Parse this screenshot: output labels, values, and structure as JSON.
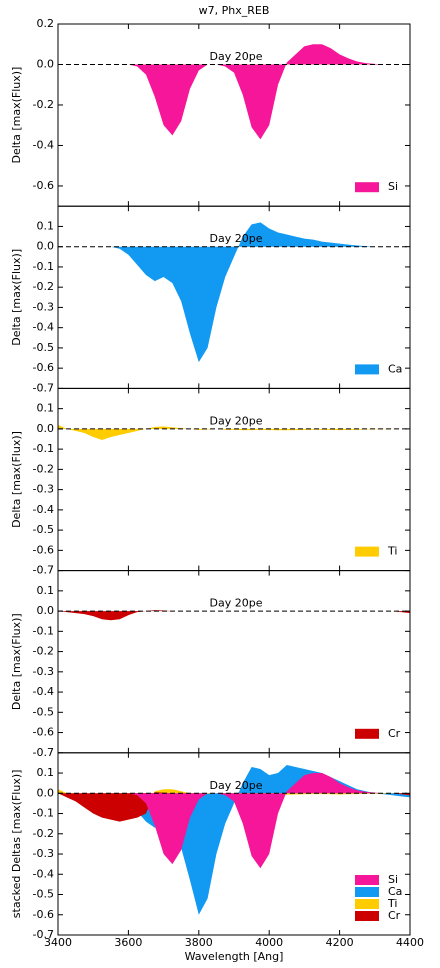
{
  "title": "w7, Phx_REB",
  "chart_data": [
    {
      "type": "area",
      "annotation": "Day 20pe",
      "ylabel": "Delta [max(Flux)]",
      "ylim": [
        -0.7,
        0.2
      ],
      "yticks": [
        0.2,
        {
          "value": 0,
          "label": "0.0"
        },
        -0.2,
        -0.4,
        -0.6
      ],
      "x": [
        3400,
        3425,
        3450,
        3475,
        3500,
        3525,
        3550,
        3575,
        3600,
        3625,
        3650,
        3675,
        3700,
        3725,
        3750,
        3775,
        3800,
        3825,
        3850,
        3875,
        3900,
        3925,
        3950,
        3975,
        4000,
        4025,
        4050,
        4075,
        4100,
        4125,
        4150,
        4175,
        4200,
        4225,
        4250,
        4275,
        4300,
        4325,
        4350,
        4375,
        4400
      ],
      "series": [
        {
          "name": "Si",
          "color": "#f5169a",
          "values": [
            0,
            0,
            0,
            0,
            0,
            0,
            0,
            0,
            0,
            -0.01,
            -0.05,
            -0.16,
            -0.3,
            -0.35,
            -0.28,
            -0.12,
            -0.03,
            0,
            0,
            -0.01,
            -0.04,
            -0.15,
            -0.31,
            -0.37,
            -0.3,
            -0.1,
            0.01,
            0.05,
            0.09,
            0.1,
            0.1,
            0.08,
            0.05,
            0.03,
            0.015,
            0.007,
            0.003,
            0,
            0,
            0,
            0
          ]
        }
      ]
    },
    {
      "type": "area",
      "annotation": "Day 20pe",
      "ylabel": "Delta [max(Flux)]",
      "ylim": [
        -0.7,
        0.2
      ],
      "yticks": [
        0.1,
        {
          "value": 0,
          "label": "0.0"
        },
        -0.1,
        -0.2,
        -0.3,
        -0.4,
        -0.5,
        -0.6,
        -0.7
      ],
      "x": [
        3400,
        3425,
        3450,
        3475,
        3500,
        3525,
        3550,
        3575,
        3600,
        3625,
        3650,
        3675,
        3700,
        3725,
        3750,
        3775,
        3800,
        3825,
        3850,
        3875,
        3900,
        3925,
        3950,
        3975,
        4000,
        4025,
        4050,
        4075,
        4100,
        4125,
        4150,
        4175,
        4200,
        4225,
        4250,
        4275,
        4300,
        4325,
        4350,
        4375,
        4400
      ],
      "series": [
        {
          "name": "Ca",
          "color": "#1299f2",
          "values": [
            0,
            0,
            0,
            0,
            0,
            0,
            0,
            -0.01,
            -0.04,
            -0.09,
            -0.14,
            -0.17,
            -0.15,
            -0.18,
            -0.27,
            -0.43,
            -0.57,
            -0.5,
            -0.3,
            -0.15,
            -0.05,
            0.05,
            0.11,
            0.12,
            0.09,
            0.07,
            0.06,
            0.05,
            0.04,
            0.035,
            0.025,
            0.02,
            0.015,
            0.01,
            0.006,
            0.003,
            0,
            0,
            0,
            0,
            0
          ]
        }
      ]
    },
    {
      "type": "area",
      "annotation": "Day 20pe",
      "ylabel": "Delta [max(Flux)]",
      "ylim": [
        -0.7,
        0.2
      ],
      "yticks": [
        0.1,
        {
          "value": 0,
          "label": "0.0"
        },
        -0.1,
        -0.2,
        -0.3,
        -0.4,
        -0.5,
        -0.6,
        -0.7
      ],
      "x": [
        3400,
        3425,
        3450,
        3475,
        3500,
        3525,
        3550,
        3575,
        3600,
        3625,
        3650,
        3675,
        3700,
        3725,
        3750,
        3775,
        3800,
        3825,
        3850,
        3875,
        3900,
        3925,
        3950,
        3975,
        4000,
        4025,
        4050,
        4075,
        4100,
        4125,
        4150,
        4175,
        4200,
        4225,
        4250,
        4275,
        4300,
        4325,
        4350,
        4375,
        4400
      ],
      "series": [
        {
          "name": "Ti",
          "color": "#ffcc00",
          "values": [
            0.02,
            0,
            -0.01,
            -0.02,
            -0.04,
            -0.055,
            -0.04,
            -0.03,
            -0.02,
            -0.01,
            0,
            0.01,
            0.012,
            0.008,
            0.004,
            0,
            -0.005,
            -0.003,
            0,
            -0.004,
            -0.005,
            -0.006,
            -0.006,
            -0.005,
            -0.006,
            -0.007,
            -0.007,
            -0.006,
            -0.005,
            -0.004,
            -0.004,
            -0.005,
            -0.006,
            -0.005,
            -0.004,
            -0.003,
            -0.002,
            -0.002,
            -0.001,
            0,
            0
          ]
        }
      ]
    },
    {
      "type": "area",
      "annotation": "Day 20pe",
      "ylabel": "Delta [max(Flux)]",
      "ylim": [
        -0.7,
        0.2
      ],
      "yticks": [
        0.1,
        {
          "value": 0,
          "label": "0.0"
        },
        -0.1,
        -0.2,
        -0.3,
        -0.4,
        -0.5,
        -0.6,
        -0.7
      ],
      "x": [
        3400,
        3425,
        3450,
        3475,
        3500,
        3525,
        3550,
        3575,
        3600,
        3625,
        3650,
        3675,
        3700,
        3725,
        3750,
        3775,
        3800,
        3825,
        3850,
        3875,
        3900,
        3925,
        3950,
        3975,
        4000,
        4025,
        4050,
        4075,
        4100,
        4125,
        4150,
        4175,
        4200,
        4225,
        4250,
        4275,
        4300,
        4325,
        4350,
        4375,
        4400
      ],
      "series": [
        {
          "name": "Cr",
          "color": "#cc0000",
          "values": [
            0,
            -0.005,
            -0.01,
            -0.015,
            -0.025,
            -0.04,
            -0.045,
            -0.04,
            -0.02,
            -0.005,
            0,
            0.005,
            0.003,
            0,
            0,
            0,
            0,
            0,
            0,
            0,
            0,
            0,
            0,
            0,
            0,
            0,
            0,
            0,
            0,
            0,
            0,
            0,
            0,
            0,
            0,
            0,
            0,
            0,
            0,
            -0.005,
            -0.01
          ]
        }
      ]
    },
    {
      "type": "area",
      "annotation": "Day 20pe",
      "ylabel": "stacked Deltas [max(Flux)]",
      "xlabel": "Wavelength [Ang]",
      "ylim": [
        -0.7,
        0.2
      ],
      "xlim": [
        3400,
        4400
      ],
      "xticks": [
        3400,
        3600,
        3800,
        4000,
        4200,
        4400
      ],
      "yticks": [
        0.1,
        {
          "value": 0,
          "label": "0.0"
        },
        -0.1,
        -0.2,
        -0.3,
        -0.4,
        -0.5,
        -0.6,
        -0.7
      ],
      "x": [
        3400,
        3425,
        3450,
        3475,
        3500,
        3525,
        3550,
        3575,
        3600,
        3625,
        3650,
        3675,
        3700,
        3725,
        3750,
        3775,
        3800,
        3825,
        3850,
        3875,
        3900,
        3925,
        3950,
        3975,
        4000,
        4025,
        4050,
        4075,
        4100,
        4125,
        4150,
        4175,
        4200,
        4225,
        4250,
        4275,
        4300,
        4325,
        4350,
        4375,
        4400
      ],
      "series": [
        {
          "name": "Si",
          "color": "#f5169a",
          "values": [
            0,
            0,
            0,
            0,
            0,
            0,
            0,
            0,
            0,
            -0.01,
            -0.05,
            -0.16,
            -0.3,
            -0.35,
            -0.28,
            -0.12,
            -0.03,
            0,
            0,
            -0.01,
            -0.04,
            -0.15,
            -0.31,
            -0.37,
            -0.3,
            -0.1,
            0.01,
            0.05,
            0.09,
            0.1,
            0.1,
            0.08,
            0.05,
            0.03,
            0.015,
            0.007,
            0.003,
            0,
            0,
            0,
            0
          ]
        },
        {
          "name": "Ca",
          "color": "#1299f2",
          "values": [
            0,
            0,
            0,
            0,
            0,
            0,
            0,
            -0.01,
            -0.04,
            -0.09,
            -0.14,
            -0.17,
            -0.15,
            -0.18,
            -0.27,
            -0.43,
            -0.6,
            -0.52,
            -0.3,
            -0.15,
            -0.05,
            0.05,
            0.13,
            0.12,
            0.09,
            0.1,
            0.14,
            0.13,
            0.12,
            0.11,
            0.1,
            0.08,
            0.06,
            0.04,
            0.02,
            0.01,
            0,
            -0.005,
            -0.01,
            -0.015,
            -0.02
          ]
        },
        {
          "name": "Ti",
          "color": "#ffcc00",
          "values": [
            0.02,
            0,
            -0.01,
            -0.03,
            -0.06,
            -0.08,
            -0.08,
            -0.09,
            -0.09,
            -0.1,
            -0.05,
            0.01,
            0.02,
            0.02,
            0.01,
            0,
            -0.005,
            -0.003,
            0,
            -0.004,
            -0.005,
            -0.006,
            -0.006,
            -0.005,
            -0.006,
            -0.007,
            -0.007,
            -0.006,
            -0.005,
            -0.004,
            -0.004,
            -0.005,
            -0.006,
            -0.005,
            -0.004,
            -0.003,
            -0.002,
            -0.002,
            -0.001,
            0,
            0
          ]
        },
        {
          "name": "Cr",
          "color": "#cc0000",
          "values": [
            0,
            -0.02,
            -0.04,
            -0.07,
            -0.1,
            -0.12,
            -0.13,
            -0.14,
            -0.13,
            -0.12,
            -0.1,
            0.005,
            0.003,
            0,
            0,
            0,
            0,
            0,
            0,
            0,
            0,
            0,
            0,
            0,
            0,
            0,
            0,
            0,
            0,
            0,
            0,
            0,
            0,
            0,
            0,
            0,
            0,
            0,
            0,
            -0.005,
            -0.01
          ]
        }
      ]
    }
  ]
}
